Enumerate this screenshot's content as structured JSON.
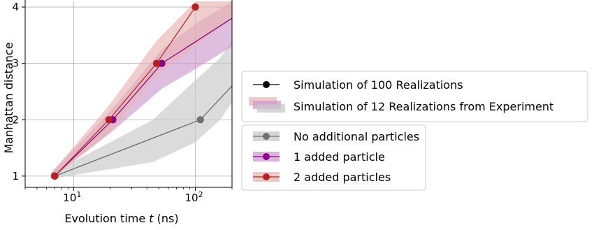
{
  "chart_data": {
    "type": "line",
    "xlabel": "Evolution time t (ns)",
    "ylabel": "Manhattan distance",
    "xscale": "log",
    "xlim": [
      4,
      200
    ],
    "ylim": [
      0.8,
      4.1
    ],
    "x_ticks": [
      {
        "value": 10,
        "label": "10",
        "exp": "1"
      },
      {
        "value": 100,
        "label": "10",
        "exp": "2"
      }
    ],
    "y_ticks": [
      1,
      2,
      3,
      4
    ],
    "grid": true,
    "legend_placement": "right, outside plot",
    "series": [
      {
        "name": "No additional particles",
        "color": "#666666",
        "marker_color": "#707070",
        "band_color": "#c8c8c8",
        "x": [
          7,
          110,
          200
        ],
        "y": [
          1,
          2,
          2.6
        ],
        "band": {
          "x": [
            6.5,
            45,
            100,
            160,
            200
          ],
          "lower": [
            0.95,
            1.25,
            1.6,
            2.0,
            2.3
          ],
          "upper": [
            1.05,
            2.0,
            2.7,
            3.1,
            3.4
          ]
        }
      },
      {
        "name": "1 added particle",
        "color": "#800080",
        "marker_color": "#8b008b",
        "band_color": "#cc99cc",
        "x": [
          7,
          21,
          53,
          200
        ],
        "y": [
          1,
          2,
          3,
          3.8
        ],
        "band": {
          "x": [
            6.5,
            21,
            53,
            100,
            200
          ],
          "lower": [
            0.95,
            1.8,
            2.55,
            2.9,
            3.3
          ],
          "upper": [
            1.05,
            2.2,
            3.25,
            3.7,
            4.1
          ]
        }
      },
      {
        "name": "2 added particles",
        "color": "#b22222",
        "marker_color": "#b22222",
        "band_color": "#e8b4b4",
        "x": [
          7,
          19.5,
          48,
          100
        ],
        "y": [
          1,
          2,
          3,
          4
        ],
        "band": {
          "x": [
            6.5,
            19.5,
            48,
            100,
            200
          ],
          "lower": [
            0.95,
            1.75,
            2.8,
            3.3,
            3.8
          ],
          "upper": [
            1.05,
            2.25,
            3.4,
            4.1,
            4.1
          ]
        }
      }
    ],
    "legend_top": [
      {
        "kind": "line-marker",
        "label": "Simulation of 100 Realizations",
        "color": "#000000"
      },
      {
        "kind": "bands",
        "label": "Simulation of 12 Realizations from Experiment",
        "colors": [
          "#e8b4b4",
          "#cc99cc",
          "#c8c8c8"
        ]
      }
    ],
    "legend_bottom": [
      {
        "label": "No additional particles",
        "color": "#707070",
        "band_color": "#c8c8c8"
      },
      {
        "label": "1 added particle",
        "color": "#8b008b",
        "band_color": "#cc99cc"
      },
      {
        "label": "2 added particles",
        "color": "#b22222",
        "band_color": "#e8b4b4"
      }
    ]
  }
}
